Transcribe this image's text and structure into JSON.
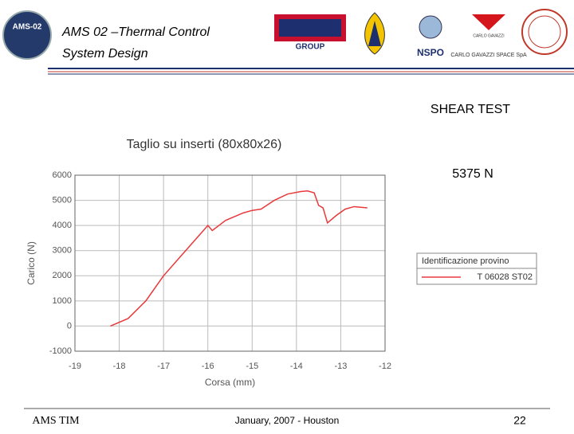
{
  "header": {
    "title_line1": "AMS 02  –Thermal Control",
    "title_line2": "System Design",
    "badge": "AMS-02",
    "esc_sub": "GROUP",
    "nspo": "NSPO",
    "cgs_small": "CARLO GAVAZZI",
    "cgs": "CARLO GAVAZZI SPACE SpA"
  },
  "slide": {
    "heading": "SHEAR TEST",
    "note": "5375 N"
  },
  "footer": {
    "left": "AMS TIM",
    "center": "January, 2007 - Houston",
    "page": "22"
  },
  "chart_data": {
    "type": "line",
    "title": "Taglio su inserti (80x80x26)",
    "xlabel": "Corsa (mm)",
    "ylabel": "Carico (N)",
    "legend_title": "Identificazione provino",
    "grid": true,
    "x": [
      -18.2,
      -17.8,
      -17.4,
      -17.0,
      -16.6,
      -16.2,
      -16.0,
      -15.9,
      -15.6,
      -15.2,
      -15.0,
      -14.8,
      -14.5,
      -14.2,
      -13.9,
      -13.75,
      -13.6,
      -13.5,
      -13.4,
      -13.3,
      -13.1,
      -12.9,
      -12.7,
      -12.4
    ],
    "series": [
      {
        "name": "T 06028 ST02",
        "color": "#e8393b",
        "values": [
          0,
          300,
          1000,
          2000,
          2800,
          3600,
          4000,
          3800,
          4200,
          4500,
          4600,
          4650,
          5000,
          5250,
          5350,
          5375,
          5300,
          4800,
          4700,
          4100,
          4400,
          4650,
          4750,
          4700
        ]
      }
    ],
    "xlim": [
      -19,
      -12
    ],
    "xticks": [
      -19,
      -18,
      -17,
      -16,
      -15,
      -14,
      -13,
      -12
    ],
    "ylim": [
      -1000,
      6000
    ],
    "yticks": [
      -1000,
      0,
      1000,
      2000,
      3000,
      4000,
      5000,
      6000
    ]
  }
}
